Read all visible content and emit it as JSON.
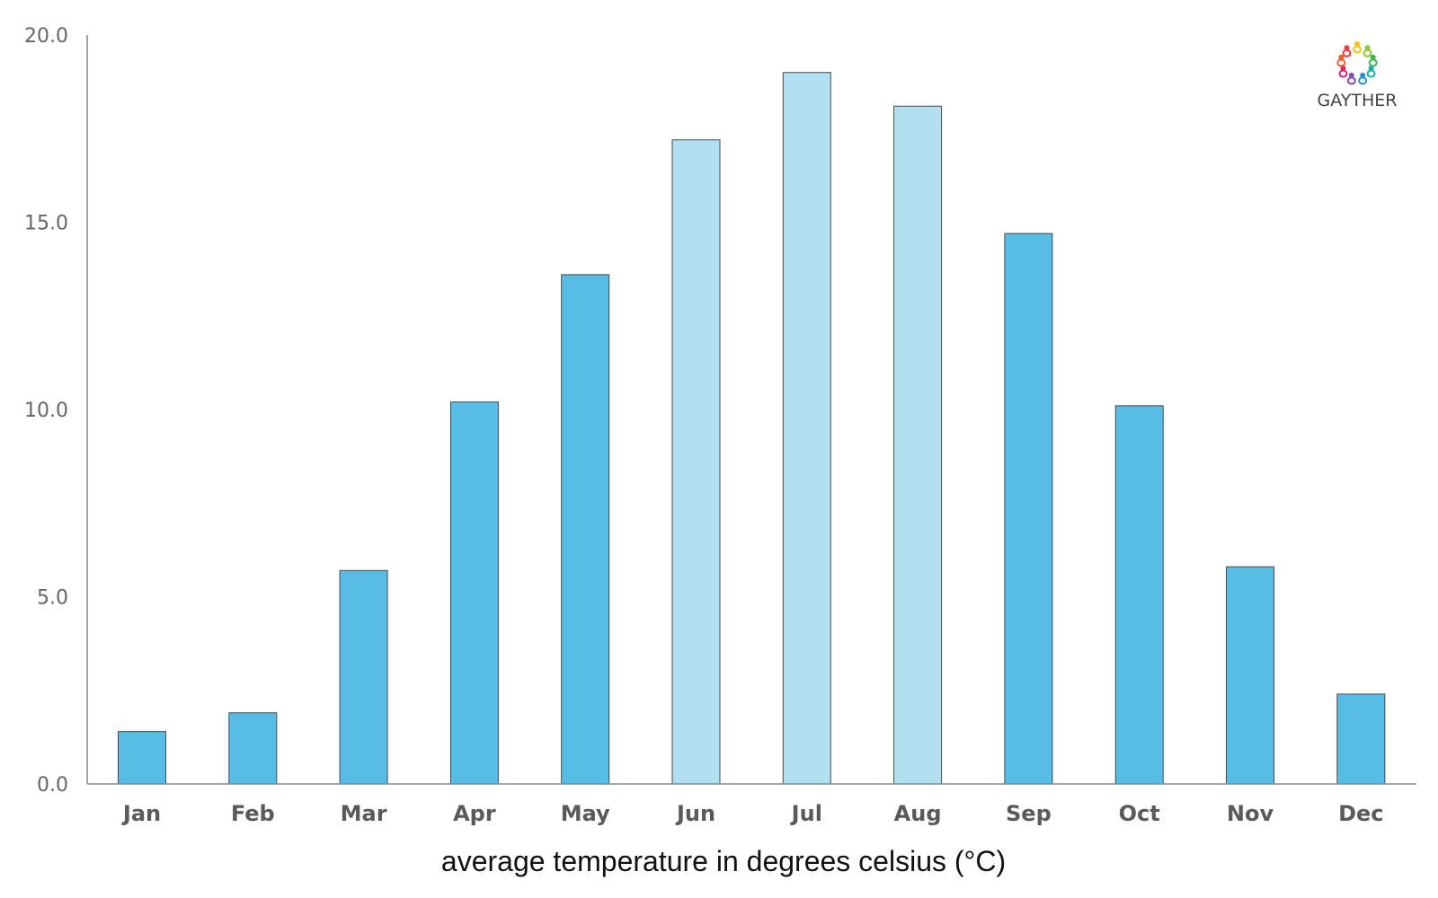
{
  "chart_data": {
    "type": "bar",
    "categories": [
      "Jan",
      "Feb",
      "Mar",
      "Apr",
      "May",
      "Jun",
      "Jul",
      "Aug",
      "Sep",
      "Oct",
      "Nov",
      "Dec"
    ],
    "values": [
      1.4,
      1.9,
      5.7,
      10.2,
      13.6,
      17.2,
      19.0,
      18.1,
      14.7,
      10.1,
      5.8,
      2.4
    ],
    "highlight": [
      false,
      false,
      false,
      false,
      false,
      true,
      true,
      true,
      false,
      false,
      false,
      false
    ],
    "title": "",
    "xlabel": "average temperature in degrees celsius (°C)",
    "ylabel": "",
    "ylim": [
      0,
      20
    ],
    "yticks": [
      "0.0",
      "5.0",
      "10.0",
      "15.0",
      "20.0"
    ],
    "ytick_values": [
      0,
      5,
      10,
      15,
      20
    ],
    "grid": false,
    "legend": "none"
  },
  "colors": {
    "bar": "#57bde6",
    "bar_highlight": "#b2dff2"
  },
  "logo": {
    "text": "GAYTHER",
    "icon": "gayther-logo-icon"
  }
}
